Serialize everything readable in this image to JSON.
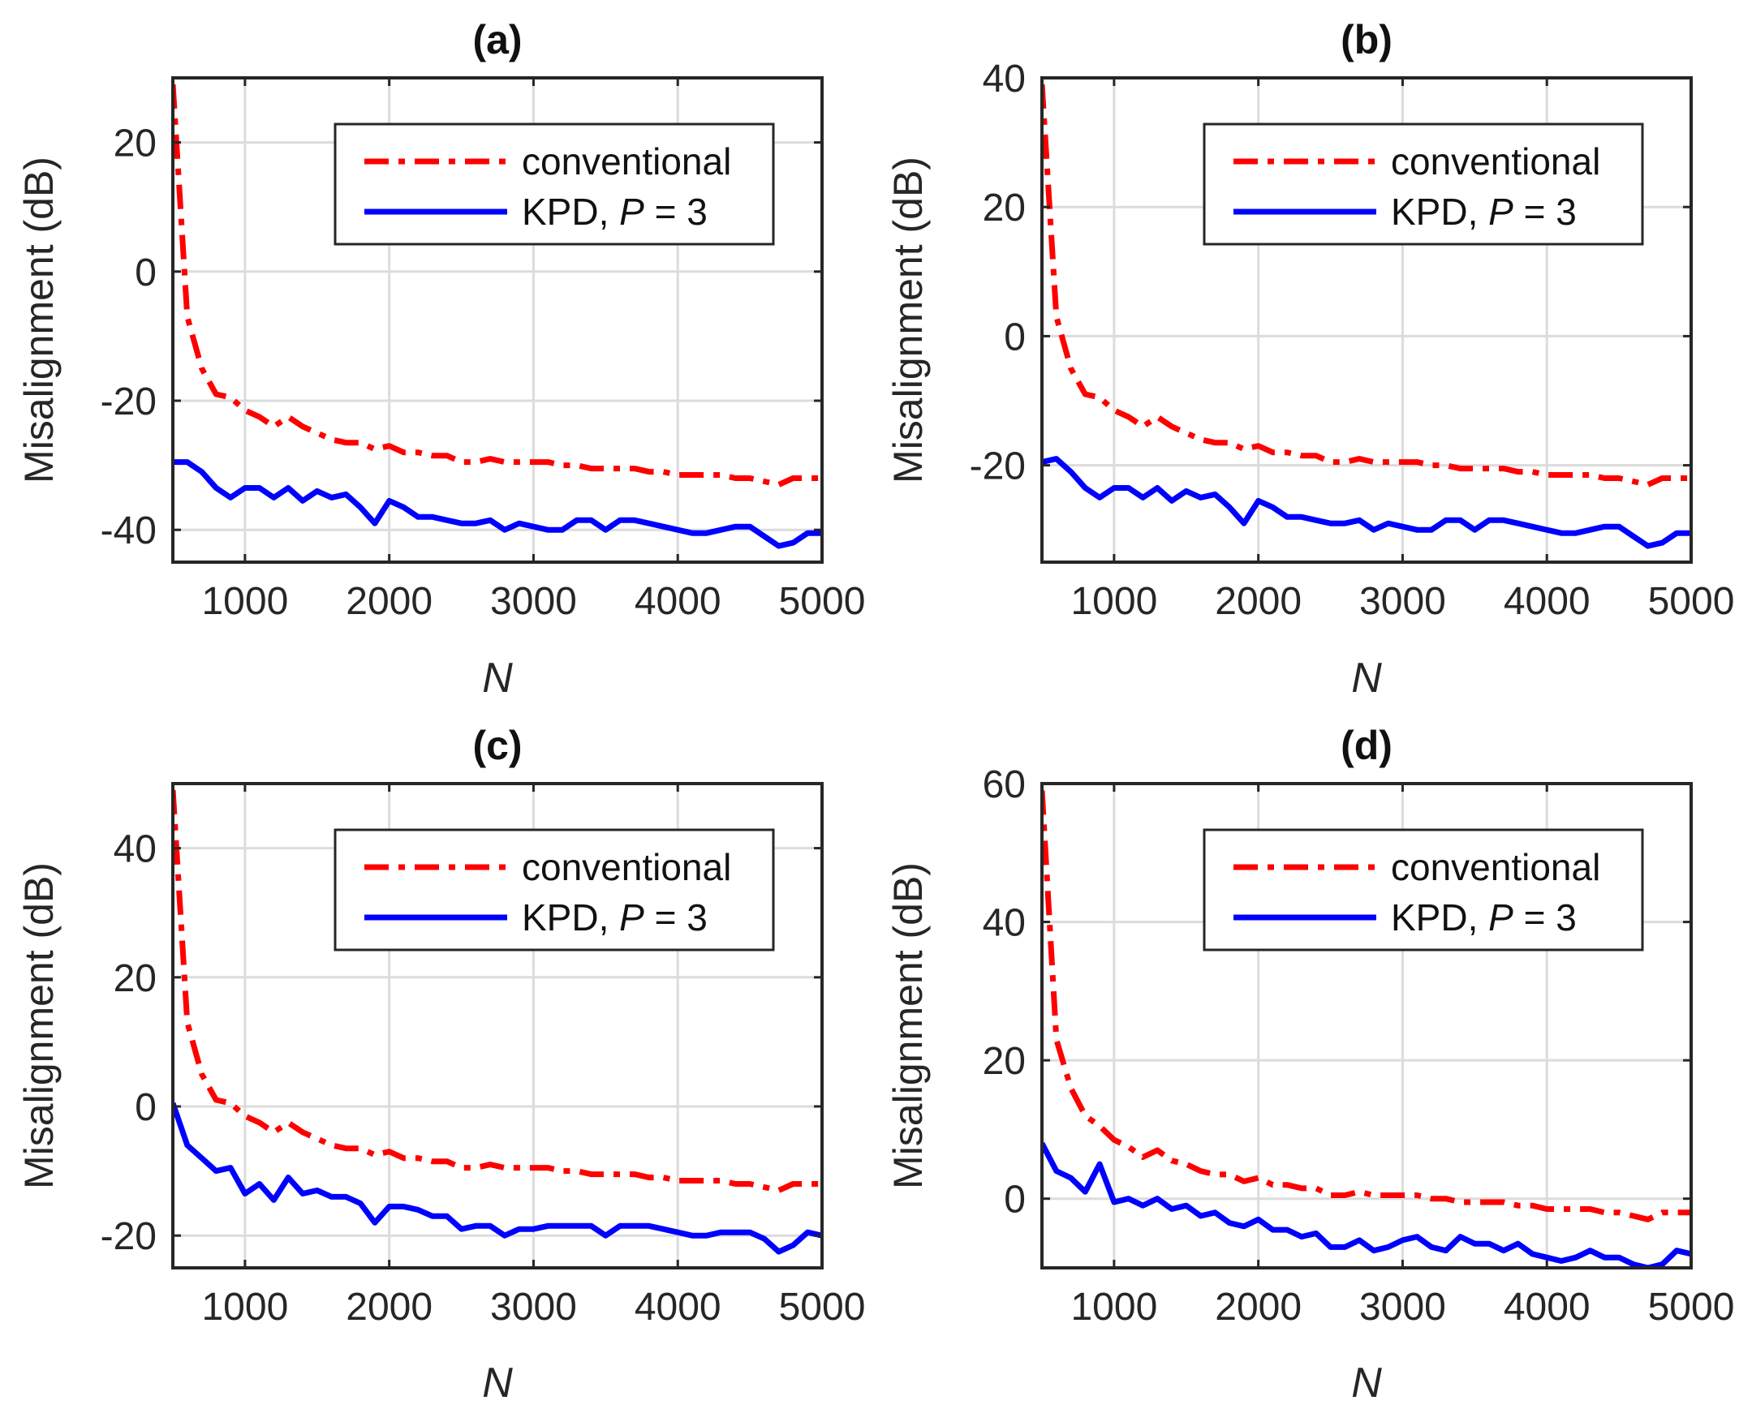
{
  "figure": {
    "background": "#ffffff",
    "colors": {
      "conventional": "#ff0000",
      "kpd": "#0000ff",
      "grid": "#dcdcdc",
      "axes": "#262626"
    }
  },
  "chart_data": [
    {
      "panel": "a",
      "type": "line",
      "title": "(a)",
      "xlabel": "N",
      "ylabel": "Misalignment (dB)",
      "xlim": [
        500,
        5000
      ],
      "ylim": [
        -45,
        30
      ],
      "xticks": [
        1000,
        2000,
        3000,
        4000,
        5000
      ],
      "xtick_labels": [
        "1000",
        "2000",
        "3000",
        "4000",
        "5000"
      ],
      "yticks": [
        -40,
        -20,
        0,
        20
      ],
      "ytick_labels": [
        "-40",
        "-20",
        "0",
        "20"
      ],
      "grid": true,
      "legend_position": "top-right",
      "x": [
        500,
        600,
        700,
        800,
        900,
        1000,
        1100,
        1200,
        1300,
        1400,
        1500,
        1600,
        1700,
        1800,
        1900,
        2000,
        2100,
        2200,
        2300,
        2400,
        2500,
        2600,
        2700,
        2800,
        2900,
        3000,
        3100,
        3200,
        3300,
        3400,
        3500,
        3600,
        3700,
        3800,
        3900,
        4000,
        4100,
        4200,
        4300,
        4400,
        4500,
        4600,
        4700,
        4800,
        4900,
        5000
      ],
      "series": [
        {
          "name": "conventional",
          "style": "dash-dot",
          "color": "#ff0000",
          "values": [
            29,
            -7,
            -15,
            -19,
            -19.5,
            -21.5,
            -22.5,
            -24,
            -22.5,
            -24,
            -25,
            -26,
            -26.5,
            -26.5,
            -27.5,
            -27,
            -28,
            -28,
            -28.5,
            -28.5,
            -29.5,
            -29.5,
            -29,
            -29.5,
            -29.5,
            -29.5,
            -29.5,
            -30,
            -30,
            -30.5,
            -30.5,
            -30.5,
            -30.5,
            -31,
            -31,
            -31.5,
            -31.5,
            -31.5,
            -31.5,
            -32,
            -32,
            -32.5,
            -33,
            -32,
            -32,
            -32
          ]
        },
        {
          "name": "KPD, P = 3",
          "style": "solid",
          "color": "#0000ff",
          "values": [
            -29.5,
            -29.5,
            -31,
            -33.5,
            -35,
            -33.5,
            -33.5,
            -35,
            -33.5,
            -35.5,
            -34,
            -35,
            -34.5,
            -36.5,
            -39,
            -35.5,
            -36.5,
            -38,
            -38,
            -38.5,
            -39,
            -39,
            -38.5,
            -40,
            -39,
            -39.5,
            -40,
            -40,
            -38.5,
            -38.5,
            -40,
            -38.5,
            -38.5,
            -39,
            -39.5,
            -40,
            -40.5,
            -40.5,
            -40,
            -39.5,
            -39.5,
            -41,
            -42.5,
            -42,
            -40.5,
            -40.5
          ]
        }
      ]
    },
    {
      "panel": "b",
      "type": "line",
      "title": "(b)",
      "xlabel": "N",
      "ylabel": "Misalignment (dB)",
      "xlim": [
        500,
        5000
      ],
      "ylim": [
        -35,
        40
      ],
      "xticks": [
        1000,
        2000,
        3000,
        4000,
        5000
      ],
      "xtick_labels": [
        "1000",
        "2000",
        "3000",
        "4000",
        "5000"
      ],
      "yticks": [
        -20,
        0,
        20,
        40
      ],
      "ytick_labels": [
        "-20",
        "0",
        "20",
        "40"
      ],
      "grid": true,
      "legend_position": "top-right",
      "x": [
        500,
        600,
        700,
        800,
        900,
        1000,
        1100,
        1200,
        1300,
        1400,
        1500,
        1600,
        1700,
        1800,
        1900,
        2000,
        2100,
        2200,
        2300,
        2400,
        2500,
        2600,
        2700,
        2800,
        2900,
        3000,
        3100,
        3200,
        3300,
        3400,
        3500,
        3600,
        3700,
        3800,
        3900,
        4000,
        4100,
        4200,
        4300,
        4400,
        4500,
        4600,
        4700,
        4800,
        4900,
        5000
      ],
      "series": [
        {
          "name": "conventional",
          "style": "dash-dot",
          "color": "#ff0000",
          "values": [
            39,
            3,
            -5,
            -9,
            -9.5,
            -11.5,
            -12.5,
            -14,
            -12.5,
            -14,
            -15,
            -16,
            -16.5,
            -16.5,
            -17.5,
            -17,
            -18,
            -18,
            -18.5,
            -18.5,
            -19.5,
            -19.5,
            -19,
            -19.5,
            -19.5,
            -19.5,
            -19.5,
            -20,
            -20,
            -20.5,
            -20.5,
            -20.5,
            -20.5,
            -21,
            -21,
            -21.5,
            -21.5,
            -21.5,
            -21.5,
            -22,
            -22,
            -22.5,
            -23,
            -22,
            -22,
            -22
          ]
        },
        {
          "name": "KPD, P = 3",
          "style": "solid",
          "color": "#0000ff",
          "values": [
            -19.5,
            -19,
            -21,
            -23.5,
            -25,
            -23.5,
            -23.5,
            -25,
            -23.5,
            -25.5,
            -24,
            -25,
            -24.5,
            -26.5,
            -29,
            -25.5,
            -26.5,
            -28,
            -28,
            -28.5,
            -29,
            -29,
            -28.5,
            -30,
            -29,
            -29.5,
            -30,
            -30,
            -28.5,
            -28.5,
            -30,
            -28.5,
            -28.5,
            -29,
            -29.5,
            -30,
            -30.5,
            -30.5,
            -30,
            -29.5,
            -29.5,
            -31,
            -32.5,
            -32,
            -30.5,
            -30.5
          ]
        }
      ]
    },
    {
      "panel": "c",
      "type": "line",
      "title": "(c)",
      "xlabel": "N",
      "ylabel": "Misalignment (dB)",
      "xlim": [
        500,
        5000
      ],
      "ylim": [
        -25,
        50
      ],
      "xticks": [
        1000,
        2000,
        3000,
        4000,
        5000
      ],
      "xtick_labels": [
        "1000",
        "2000",
        "3000",
        "4000",
        "5000"
      ],
      "yticks": [
        -20,
        0,
        20,
        40
      ],
      "ytick_labels": [
        "-20",
        "0",
        "20",
        "40"
      ],
      "grid": true,
      "legend_position": "top-right",
      "x": [
        500,
        600,
        700,
        800,
        900,
        1000,
        1100,
        1200,
        1300,
        1400,
        1500,
        1600,
        1700,
        1800,
        1900,
        2000,
        2100,
        2200,
        2300,
        2400,
        2500,
        2600,
        2700,
        2800,
        2900,
        3000,
        3100,
        3200,
        3300,
        3400,
        3500,
        3600,
        3700,
        3800,
        3900,
        4000,
        4100,
        4200,
        4300,
        4400,
        4500,
        4600,
        4700,
        4800,
        4900,
        5000
      ],
      "series": [
        {
          "name": "conventional",
          "style": "dash-dot",
          "color": "#ff0000",
          "values": [
            49,
            13,
            5,
            1,
            0.5,
            -1.5,
            -2.5,
            -4,
            -2.5,
            -4,
            -5,
            -6,
            -6.5,
            -6.5,
            -7.5,
            -7,
            -8,
            -8,
            -8.5,
            -8.5,
            -9.5,
            -9.5,
            -9,
            -9.5,
            -9.5,
            -9.5,
            -9.5,
            -10,
            -10,
            -10.5,
            -10.5,
            -10.5,
            -10.5,
            -11,
            -11,
            -11.5,
            -11.5,
            -11.5,
            -11.5,
            -12,
            -12,
            -12.5,
            -13,
            -12,
            -12,
            -12
          ]
        },
        {
          "name": "KPD, P = 3",
          "style": "solid",
          "color": "#0000ff",
          "values": [
            0.5,
            -6,
            -8,
            -10,
            -9.5,
            -13.5,
            -12,
            -14.5,
            -11,
            -13.5,
            -13,
            -14,
            -14,
            -15,
            -18,
            -15.5,
            -15.5,
            -16,
            -17,
            -17,
            -19,
            -18.5,
            -18.5,
            -20,
            -19,
            -19,
            -18.5,
            -18.5,
            -18.5,
            -18.5,
            -20,
            -18.5,
            -18.5,
            -18.5,
            -19,
            -19.5,
            -20,
            -20,
            -19.5,
            -19.5,
            -19.5,
            -20.5,
            -22.5,
            -21.5,
            -19.5,
            -20
          ]
        }
      ]
    },
    {
      "panel": "d",
      "type": "line",
      "title": "(d)",
      "xlabel": "N",
      "ylabel": "Misalignment (dB)",
      "xlim": [
        500,
        5000
      ],
      "ylim": [
        -10,
        60
      ],
      "xticks": [
        1000,
        2000,
        3000,
        4000,
        5000
      ],
      "xtick_labels": [
        "1000",
        "2000",
        "3000",
        "4000",
        "5000"
      ],
      "yticks": [
        0,
        20,
        40,
        60
      ],
      "ytick_labels": [
        "0",
        "20",
        "40",
        "60"
      ],
      "grid": true,
      "legend_position": "top-right",
      "x": [
        500,
        600,
        700,
        800,
        900,
        1000,
        1100,
        1200,
        1300,
        1400,
        1500,
        1600,
        1700,
        1800,
        1900,
        2000,
        2100,
        2200,
        2300,
        2400,
        2500,
        2600,
        2700,
        2800,
        2900,
        3000,
        3100,
        3200,
        3300,
        3400,
        3500,
        3600,
        3700,
        3800,
        3900,
        4000,
        4100,
        4200,
        4300,
        4400,
        4500,
        4600,
        4700,
        4800,
        4900,
        5000
      ],
      "series": [
        {
          "name": "conventional",
          "style": "dash-dot",
          "color": "#ff0000",
          "values": [
            59,
            23,
            16,
            12,
            10.5,
            8.5,
            7.5,
            6,
            7,
            5.5,
            5,
            4,
            3.5,
            3.5,
            2.5,
            3,
            2,
            2,
            1.5,
            1.5,
            0.5,
            0.5,
            1,
            0.5,
            0.5,
            0.5,
            0.5,
            0,
            0,
            -0.5,
            -0.5,
            -0.5,
            -0.5,
            -1,
            -1,
            -1.5,
            -1.5,
            -1.5,
            -1.5,
            -2,
            -2,
            -2.5,
            -3,
            -2,
            -2,
            -2
          ]
        },
        {
          "name": "KPD, P = 3",
          "style": "solid",
          "color": "#0000ff",
          "values": [
            8,
            4,
            3,
            1,
            5,
            -0.5,
            0,
            -1,
            0,
            -1.5,
            -1,
            -2.5,
            -2,
            -3.5,
            -4,
            -3,
            -4.5,
            -4.5,
            -5.5,
            -5,
            -7,
            -7,
            -6,
            -7.5,
            -7,
            -6,
            -5.5,
            -7,
            -7.5,
            -5.5,
            -6.5,
            -6.5,
            -7.5,
            -6.5,
            -8,
            -8.5,
            -9,
            -8.5,
            -7.5,
            -8.5,
            -8.5,
            -9.5,
            -10,
            -9.5,
            -7.5,
            -8
          ]
        }
      ]
    }
  ]
}
